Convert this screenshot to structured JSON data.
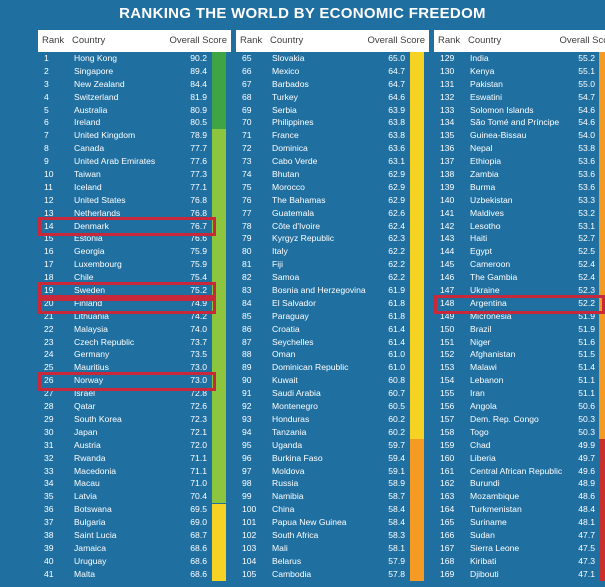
{
  "title": "RANKING THE WORLD BY ECONOMIC FREEDOM",
  "headers": {
    "rank": "Rank",
    "country": "Country",
    "score": "Overall Score"
  },
  "colors": {
    "free": "#3ea444",
    "mostly_free": "#8cc63f",
    "moderately_free": "#f6d322",
    "mostly_unfree": "#f59a23",
    "repressed": "#c9302c",
    "highlight": "#c8283a",
    "background": "#1f6fa1"
  },
  "highlighted_ranks": [
    14,
    19,
    20,
    26,
    148
  ],
  "chart_data": {
    "type": "table",
    "title": "RANKING THE WORLD BY ECONOMIC FREEDOM",
    "columns": [
      "Rank",
      "Country",
      "Overall Score"
    ],
    "columns_panels": [
      [
        {
          "rank": 1,
          "country": "Hong Kong",
          "score": "90.2"
        },
        {
          "rank": 2,
          "country": "Singapore",
          "score": "89.4"
        },
        {
          "rank": 3,
          "country": "New Zealand",
          "score": "84.4"
        },
        {
          "rank": 4,
          "country": "Switzerland",
          "score": "81.9"
        },
        {
          "rank": 5,
          "country": "Australia",
          "score": "80.9"
        },
        {
          "rank": 6,
          "country": "Ireland",
          "score": "80.5"
        },
        {
          "rank": 7,
          "country": "United Kingdom",
          "score": "78.9"
        },
        {
          "rank": 8,
          "country": "Canada",
          "score": "77.7"
        },
        {
          "rank": 9,
          "country": "United Arab Emirates",
          "score": "77.6"
        },
        {
          "rank": 10,
          "country": "Taiwan",
          "score": "77.3"
        },
        {
          "rank": 11,
          "country": "Iceland",
          "score": "77.1"
        },
        {
          "rank": 12,
          "country": "United States",
          "score": "76.8"
        },
        {
          "rank": 13,
          "country": "Netherlands",
          "score": "76.8"
        },
        {
          "rank": 14,
          "country": "Denmark",
          "score": "76.7"
        },
        {
          "rank": 15,
          "country": "Estonia",
          "score": "76.6"
        },
        {
          "rank": 16,
          "country": "Georgia",
          "score": "75.9"
        },
        {
          "rank": 17,
          "country": "Luxembourg",
          "score": "75.9"
        },
        {
          "rank": 18,
          "country": "Chile",
          "score": "75.4"
        },
        {
          "rank": 19,
          "country": "Sweden",
          "score": "75.2"
        },
        {
          "rank": 20,
          "country": "Finland",
          "score": "74.9"
        },
        {
          "rank": 21,
          "country": "Lithuania",
          "score": "74.2"
        },
        {
          "rank": 22,
          "country": "Malaysia",
          "score": "74.0"
        },
        {
          "rank": 23,
          "country": "Czech Republic",
          "score": "73.7"
        },
        {
          "rank": 24,
          "country": "Germany",
          "score": "73.5"
        },
        {
          "rank": 25,
          "country": "Mauritius",
          "score": "73.0"
        },
        {
          "rank": 26,
          "country": "Norway",
          "score": "73.0"
        },
        {
          "rank": 27,
          "country": "Israel",
          "score": "72.8"
        },
        {
          "rank": 28,
          "country": "Qatar",
          "score": "72.6"
        },
        {
          "rank": 29,
          "country": "South Korea",
          "score": "72.3"
        },
        {
          "rank": 30,
          "country": "Japan",
          "score": "72.1"
        },
        {
          "rank": 31,
          "country": "Austria",
          "score": "72.0"
        },
        {
          "rank": 32,
          "country": "Rwanda",
          "score": "71.1"
        },
        {
          "rank": 33,
          "country": "Macedonia",
          "score": "71.1"
        },
        {
          "rank": 34,
          "country": "Macau",
          "score": "71.0"
        },
        {
          "rank": 35,
          "country": "Latvia",
          "score": "70.4"
        },
        {
          "rank": 36,
          "country": "Botswana",
          "score": "69.5"
        },
        {
          "rank": 37,
          "country": "Bulgaria",
          "score": "69.0"
        },
        {
          "rank": 38,
          "country": "Saint Lucia",
          "score": "68.7"
        },
        {
          "rank": 39,
          "country": "Jamaica",
          "score": "68.6"
        },
        {
          "rank": 40,
          "country": "Uruguay",
          "score": "68.6"
        },
        {
          "rank": 41,
          "country": "Malta",
          "score": "68.6"
        }
      ],
      [
        {
          "rank": 65,
          "country": "Slovakia",
          "score": "65.0"
        },
        {
          "rank": 66,
          "country": "Mexico",
          "score": "64.7"
        },
        {
          "rank": 67,
          "country": "Barbados",
          "score": "64.7"
        },
        {
          "rank": 68,
          "country": "Turkey",
          "score": "64.6"
        },
        {
          "rank": 69,
          "country": "Serbia",
          "score": "63.9"
        },
        {
          "rank": 70,
          "country": "Philippines",
          "score": "63.8"
        },
        {
          "rank": 71,
          "country": "France",
          "score": "63.8"
        },
        {
          "rank": 72,
          "country": "Dominica",
          "score": "63.6"
        },
        {
          "rank": 73,
          "country": "Cabo Verde",
          "score": "63.1"
        },
        {
          "rank": 74,
          "country": "Bhutan",
          "score": "62.9"
        },
        {
          "rank": 75,
          "country": "Morocco",
          "score": "62.9"
        },
        {
          "rank": 76,
          "country": "The Bahamas",
          "score": "62.9"
        },
        {
          "rank": 77,
          "country": "Guatemala",
          "score": "62.6"
        },
        {
          "rank": 78,
          "country": "Côte d'Ivoire",
          "score": "62.4"
        },
        {
          "rank": 79,
          "country": "Kyrgyz Republic",
          "score": "62.3"
        },
        {
          "rank": 80,
          "country": "Italy",
          "score": "62.2"
        },
        {
          "rank": 81,
          "country": "Fiji",
          "score": "62.2"
        },
        {
          "rank": 82,
          "country": "Samoa",
          "score": "62.2"
        },
        {
          "rank": 83,
          "country": "Bosnia and Herzegovina",
          "score": "61.9"
        },
        {
          "rank": 84,
          "country": "El Salvador",
          "score": "61.8"
        },
        {
          "rank": 85,
          "country": "Paraguay",
          "score": "61.8"
        },
        {
          "rank": 86,
          "country": "Croatia",
          "score": "61.4"
        },
        {
          "rank": 87,
          "country": "Seychelles",
          "score": "61.4"
        },
        {
          "rank": 88,
          "country": "Oman",
          "score": "61.0"
        },
        {
          "rank": 89,
          "country": "Dominican Republic",
          "score": "61.0"
        },
        {
          "rank": 90,
          "country": "Kuwait",
          "score": "60.8"
        },
        {
          "rank": 91,
          "country": "Saudi Arabia",
          "score": "60.7"
        },
        {
          "rank": 92,
          "country": "Montenegro",
          "score": "60.5"
        },
        {
          "rank": 93,
          "country": "Honduras",
          "score": "60.2"
        },
        {
          "rank": 94,
          "country": "Tanzania",
          "score": "60.2"
        },
        {
          "rank": 95,
          "country": "Uganda",
          "score": "59.7"
        },
        {
          "rank": 96,
          "country": "Burkina Faso",
          "score": "59.4"
        },
        {
          "rank": 97,
          "country": "Moldova",
          "score": "59.1"
        },
        {
          "rank": 98,
          "country": "Russia",
          "score": "58.9"
        },
        {
          "rank": 99,
          "country": "Namibia",
          "score": "58.7"
        },
        {
          "rank": 100,
          "country": "China",
          "score": "58.4"
        },
        {
          "rank": 101,
          "country": "Papua New Guinea",
          "score": "58.4"
        },
        {
          "rank": 102,
          "country": "South Africa",
          "score": "58.3"
        },
        {
          "rank": 103,
          "country": "Mali",
          "score": "58.1"
        },
        {
          "rank": 104,
          "country": "Belarus",
          "score": "57.9"
        },
        {
          "rank": 105,
          "country": "Cambodia",
          "score": "57.8"
        }
      ],
      [
        {
          "rank": 129,
          "country": "India",
          "score": "55.2"
        },
        {
          "rank": 130,
          "country": "Kenya",
          "score": "55.1"
        },
        {
          "rank": 131,
          "country": "Pakistan",
          "score": "55.0"
        },
        {
          "rank": 132,
          "country": "Eswatini",
          "score": "54.7"
        },
        {
          "rank": 133,
          "country": "Solomon Islands",
          "score": "54.6"
        },
        {
          "rank": 134,
          "country": "São Tomé and Príncipe",
          "score": "54.6"
        },
        {
          "rank": 135,
          "country": "Guinea-Bissau",
          "score": "54.0"
        },
        {
          "rank": 136,
          "country": "Nepal",
          "score": "53.8"
        },
        {
          "rank": 137,
          "country": "Ethiopia",
          "score": "53.6"
        },
        {
          "rank": 138,
          "country": "Zambia",
          "score": "53.6"
        },
        {
          "rank": 139,
          "country": "Burma",
          "score": "53.6"
        },
        {
          "rank": 140,
          "country": "Uzbekistan",
          "score": "53.3"
        },
        {
          "rank": 141,
          "country": "Maldives",
          "score": "53.2"
        },
        {
          "rank": 142,
          "country": "Lesotho",
          "score": "53.1"
        },
        {
          "rank": 143,
          "country": "Haiti",
          "score": "52.7"
        },
        {
          "rank": 144,
          "country": "Egypt",
          "score": "52.5"
        },
        {
          "rank": 145,
          "country": "Cameroon",
          "score": "52.4"
        },
        {
          "rank": 146,
          "country": "The Gambia",
          "score": "52.4"
        },
        {
          "rank": 147,
          "country": "Ukraine",
          "score": "52.3"
        },
        {
          "rank": 148,
          "country": "Argentina",
          "score": "52.2"
        },
        {
          "rank": 149,
          "country": "Micronesia",
          "score": "51.9"
        },
        {
          "rank": 150,
          "country": "Brazil",
          "score": "51.9"
        },
        {
          "rank": 151,
          "country": "Niger",
          "score": "51.6"
        },
        {
          "rank": 152,
          "country": "Afghanistan",
          "score": "51.5"
        },
        {
          "rank": 153,
          "country": "Malawi",
          "score": "51.4"
        },
        {
          "rank": 154,
          "country": "Lebanon",
          "score": "51.1"
        },
        {
          "rank": 155,
          "country": "Iran",
          "score": "51.1"
        },
        {
          "rank": 156,
          "country": "Angola",
          "score": "50.6"
        },
        {
          "rank": 157,
          "country": "Dem. Rep. Congo",
          "score": "50.3"
        },
        {
          "rank": 158,
          "country": "Togo",
          "score": "50.3"
        },
        {
          "rank": 159,
          "country": "Chad",
          "score": "49.9"
        },
        {
          "rank": 160,
          "country": "Liberia",
          "score": "49.7"
        },
        {
          "rank": 161,
          "country": "Central African Republic",
          "score": "49.6"
        },
        {
          "rank": 162,
          "country": "Burundi",
          "score": "48.9"
        },
        {
          "rank": 163,
          "country": "Mozambique",
          "score": "48.6"
        },
        {
          "rank": 164,
          "country": "Turkmenistan",
          "score": "48.4"
        },
        {
          "rank": 165,
          "country": "Suriname",
          "score": "48.1"
        },
        {
          "rank": 166,
          "country": "Sudan",
          "score": "47.7"
        },
        {
          "rank": 167,
          "country": "Sierra Leone",
          "score": "47.5"
        },
        {
          "rank": 168,
          "country": "Kiribati",
          "score": "47.3"
        },
        {
          "rank": 169,
          "country": "Djibouti",
          "score": "47.1"
        }
      ]
    ]
  }
}
